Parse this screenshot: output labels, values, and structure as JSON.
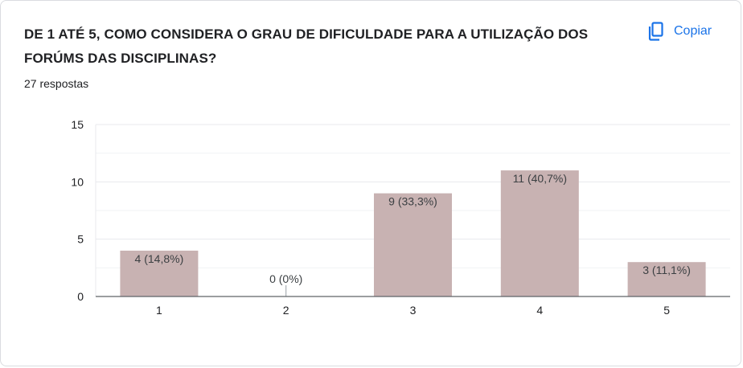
{
  "question": {
    "title": "DE 1 ATÉ 5,  COMO CONSIDERA O GRAU DE DIFICULDADE PARA A UTILIZAÇÃO DOS FORÚMS DAS DISCIPLINAS?",
    "responses": "27 respostas"
  },
  "toolbar": {
    "copy_label": "Copiar",
    "copy_icon": "copy-icon"
  },
  "colors": {
    "bar": "#c8b2b2",
    "accent": "#1a73e8",
    "grid": "#e8eaed",
    "axis": "#5f6368"
  },
  "chart_data": {
    "type": "bar",
    "categories": [
      "1",
      "2",
      "3",
      "4",
      "5"
    ],
    "values": [
      4,
      0,
      9,
      11,
      3
    ],
    "data_labels": [
      "4 (14,8%)",
      "0 (0%)",
      "9 (33,3%)",
      "11 (40,7%)",
      "3 (11,1%)"
    ],
    "yticks": [
      0,
      5,
      10,
      15
    ],
    "ylim": [
      0,
      15
    ],
    "title": "DE 1 ATÉ 5,  COMO CONSIDERA O GRAU DE DIFICULDADE PARA A UTILIZAÇÃO DOS FORÚMS DAS DISCIPLINAS?",
    "xlabel": "",
    "ylabel": "",
    "grid": true,
    "legend": "none"
  }
}
